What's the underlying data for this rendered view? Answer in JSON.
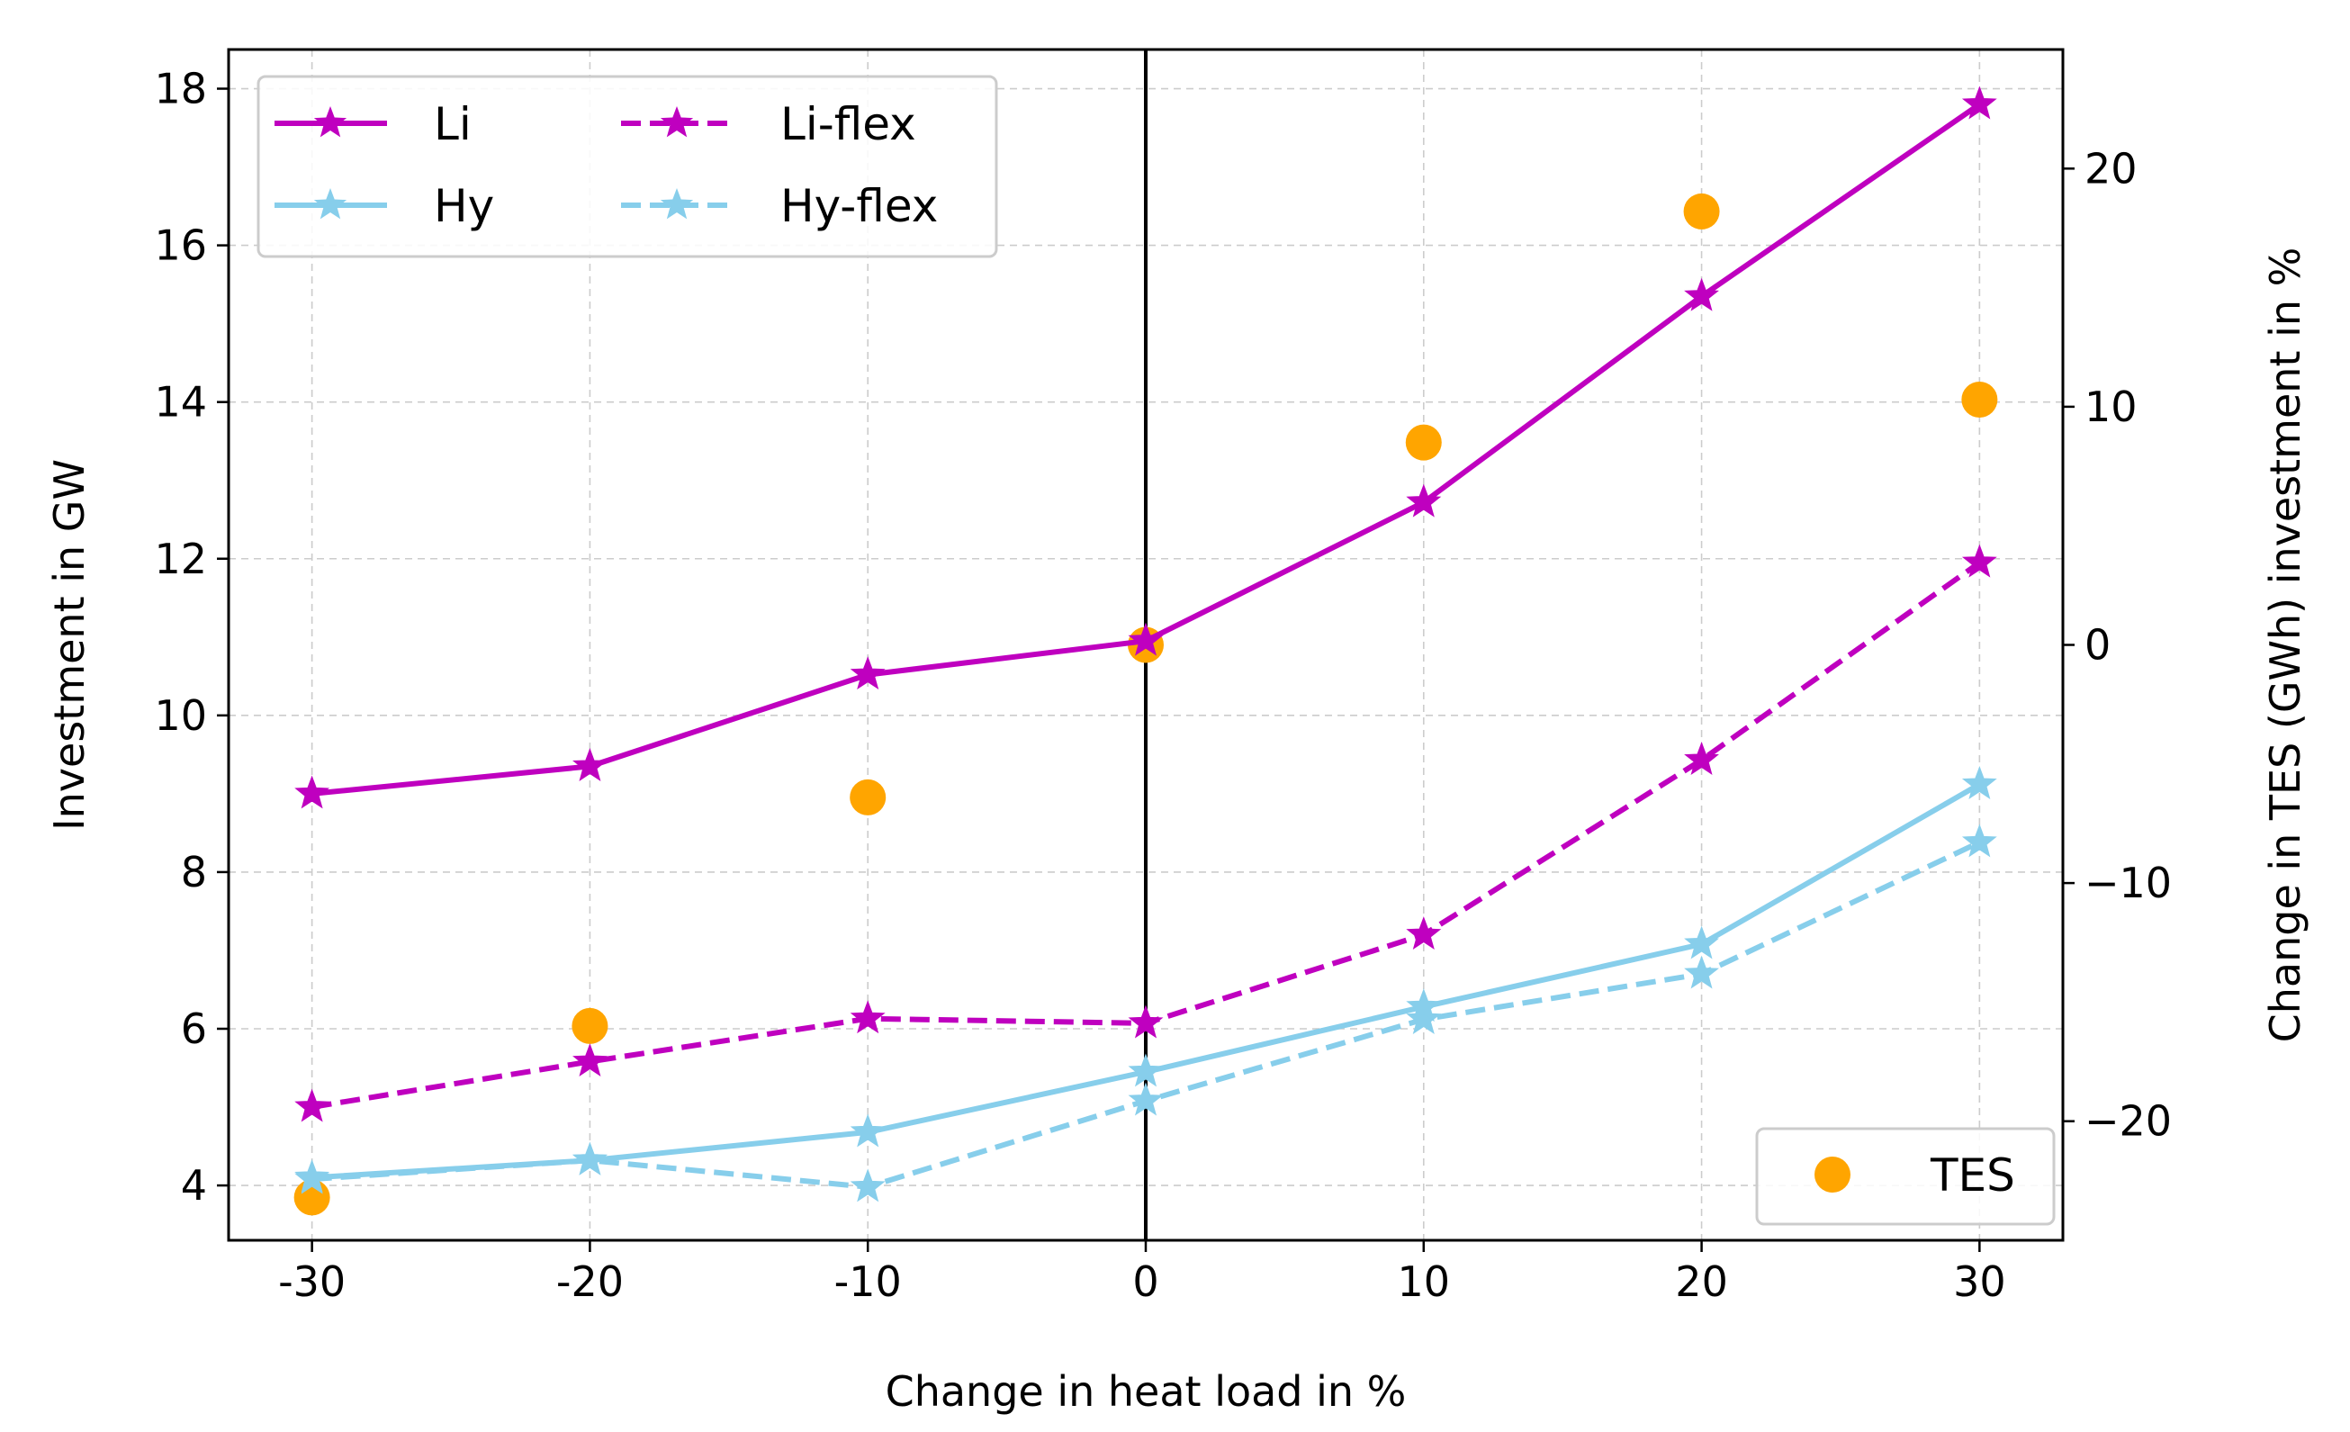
{
  "chart_data": {
    "type": "line",
    "x": [
      -30,
      -20,
      -10,
      0,
      10,
      20,
      30
    ],
    "xticklabels": [
      "-30",
      "-20",
      "-10",
      "0",
      "10",
      "20",
      "30"
    ],
    "xlabel": "Change in heat load in %",
    "ylabel": "Investment in GW",
    "y2label": "Change in TES (GWh) investment in %",
    "xlim": [
      -33,
      33
    ],
    "ylim": [
      3.3,
      18.5
    ],
    "y2lim": [
      -25,
      25
    ],
    "yticks": [
      4,
      6,
      8,
      10,
      12,
      14,
      16,
      18
    ],
    "y2ticks": [
      -20,
      -10,
      0,
      10,
      20
    ],
    "y2ticklabels": [
      "−20",
      "−10",
      "0",
      "10",
      "20"
    ],
    "grid": true,
    "vline_at_x": 0,
    "series": [
      {
        "name": "Li",
        "values": [
          9.0,
          9.35,
          10.52,
          10.95,
          12.72,
          15.35,
          17.8
        ],
        "color": "#bf00bf",
        "dash": "solid",
        "marker": "star",
        "axis": "left"
      },
      {
        "name": "Hy",
        "values": [
          4.1,
          4.32,
          4.68,
          5.45,
          6.28,
          7.08,
          9.12
        ],
        "color": "#87ceeb",
        "dash": "solid",
        "marker": "star",
        "axis": "left"
      },
      {
        "name": "Li-flex",
        "values": [
          5.0,
          5.58,
          6.13,
          6.07,
          7.2,
          9.43,
          11.95
        ],
        "color": "#bf00bf",
        "dash": "dashed",
        "marker": "star",
        "axis": "left"
      },
      {
        "name": "Hy-flex",
        "values": [
          4.08,
          4.32,
          3.98,
          5.08,
          6.12,
          6.7,
          8.38
        ],
        "color": "#87ceeb",
        "dash": "dashed",
        "marker": "star",
        "axis": "left"
      },
      {
        "name": "TES",
        "values": [
          -23.2,
          -16.0,
          -6.4,
          0.0,
          8.5,
          18.2,
          10.3
        ],
        "color": "#ffa500",
        "dash": "none",
        "marker": "circle",
        "axis": "right"
      }
    ],
    "legend_main": {
      "placement": "top-left",
      "columns": 2,
      "entries": [
        "Li",
        "Li-flex",
        "Hy",
        "Hy-flex"
      ]
    },
    "legend_secondary": {
      "placement": "bottom-right",
      "entries": [
        "TES"
      ]
    }
  }
}
